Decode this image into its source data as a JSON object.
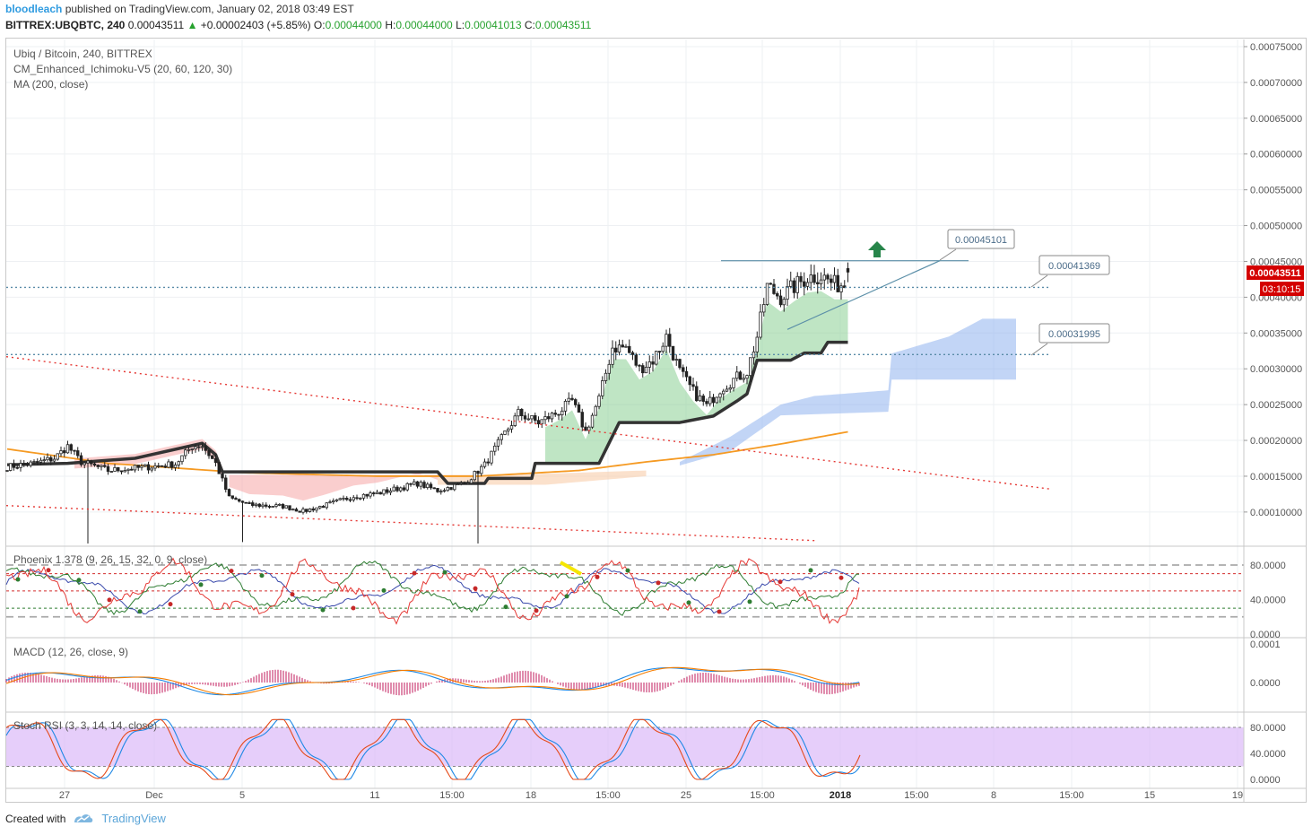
{
  "header": {
    "user": "bloodleach",
    "published": "published on TradingView.com, January 02, 2018 03:49 EST",
    "symbol": "BITTREX:UBQBTC, 240",
    "last": "0.00043511",
    "change_arrow": "▲",
    "change": "+0.00002403 (+5.85%)",
    "o_label": "O:",
    "o": "0.00044000",
    "h_label": "H:",
    "h": "0.00044000",
    "l_label": "L:",
    "l": "0.00041013",
    "c_label": "C:",
    "c": "0.00043511"
  },
  "legend": {
    "title": "Ubiq / Bitcoin, 240, BITTREX",
    "ichimoku": "CM_Enhanced_Ichimoku-V5 (20, 60, 120, 30)",
    "ma": "MA (200, close)",
    "phoenix": "Phoenix 1.378 (9, 26, 15, 32, 0, 9, close)",
    "macd": "MACD (12, 26, close, 9)",
    "stoch": "Stoch RSI (3, 3, 14, 14, close)"
  },
  "price_badge": {
    "value": "0.00043511",
    "time": "03:10:15",
    "color": "#d40000"
  },
  "callouts": [
    "0.00045101",
    "0.00041369",
    "0.00031995"
  ],
  "footer": {
    "created_with": "Created with",
    "brand": "TradingView",
    "icon": "tradingview-logo-icon"
  },
  "chart_data": {
    "type": "candlestick",
    "colors": {
      "up": "#2e8b3a",
      "down": "#c62828",
      "wick": "#222222",
      "ma": "#f59a23",
      "kijun": "#333333",
      "cloud_bull": "#8bcf94",
      "cloud_bear": "#f6a5a5",
      "cloud_future": "#8fb2ee"
    },
    "x_ticks": [
      "27",
      "Dec",
      "5",
      "11",
      "15:00",
      "18",
      "15:00",
      "25",
      "15:00",
      "2018",
      "15:00",
      "8",
      "15:00",
      "15",
      "19"
    ],
    "y_ticks": [
      0.00075,
      0.0007,
      0.00065,
      0.0006,
      0.00055,
      0.0005,
      0.00045,
      0.0004,
      0.00035,
      0.0003,
      0.00025,
      0.0002,
      0.00015,
      0.0001
    ],
    "y_tick_labels": [
      "0.00075000",
      "0.00070000",
      "0.00065000",
      "0.00060000",
      "0.00055000",
      "0.00050000",
      "0.00045000",
      "0.00040000",
      "0.00035000",
      "0.00030000",
      "0.00025000",
      "0.00020000",
      "0.00015000",
      "0.00010000"
    ],
    "ylim": [
      5.6e-05,
      0.00076
    ],
    "close_anchors": [
      [
        0,
        0.000163
      ],
      [
        8,
        0.000168
      ],
      [
        14,
        0.000175
      ],
      [
        18,
        0.000192
      ],
      [
        22,
        0.00017
      ],
      [
        30,
        0.000158
      ],
      [
        40,
        0.000162
      ],
      [
        50,
        0.000167
      ],
      [
        55,
        0.000192
      ],
      [
        58,
        0.000193
      ],
      [
        62,
        0.000168
      ],
      [
        66,
        0.00012
      ],
      [
        72,
        0.00011
      ],
      [
        82,
        0.000108
      ],
      [
        88,
        0.000101
      ],
      [
        95,
        0.00011
      ],
      [
        103,
        0.000122
      ],
      [
        110,
        0.000126
      ],
      [
        118,
        0.000135
      ],
      [
        122,
        0.00014
      ],
      [
        128,
        0.00013
      ],
      [
        136,
        0.00014
      ],
      [
        142,
        0.000166
      ],
      [
        148,
        0.00021
      ],
      [
        152,
        0.000238
      ],
      [
        158,
        0.000225
      ],
      [
        164,
        0.00024
      ],
      [
        168,
        0.000255
      ],
      [
        172,
        0.000212
      ],
      [
        176,
        0.000258
      ],
      [
        180,
        0.00033
      ],
      [
        184,
        0.00033
      ],
      [
        188,
        0.0003
      ],
      [
        192,
        0.000312
      ],
      [
        196,
        0.000345
      ],
      [
        200,
        0.000296
      ],
      [
        204,
        0.000268
      ],
      [
        208,
        0.000248
      ],
      [
        212,
        0.000272
      ],
      [
        216,
        0.000285
      ],
      [
        220,
        0.000296
      ],
      [
        223,
        0.000345
      ],
      [
        226,
        0.000415
      ],
      [
        230,
        0.0004
      ],
      [
        234,
        0.000415
      ],
      [
        238,
        0.000428
      ],
      [
        242,
        0.00043
      ],
      [
        246,
        0.000418
      ],
      [
        250,
        0.000418
      ]
    ],
    "last_candle": {
      "o": 0.00044,
      "h": 0.00044,
      "l": 0.00041013,
      "c": 0.00043511
    },
    "ma200": [
      [
        0,
        0.000188
      ],
      [
        30,
        0.000168
      ],
      [
        70,
        0.000155
      ],
      [
        110,
        0.00015
      ],
      [
        140,
        0.00015
      ],
      [
        170,
        0.000158
      ],
      [
        190,
        0.00017
      ],
      [
        210,
        0.00018
      ],
      [
        230,
        0.000195
      ],
      [
        250,
        0.000212
      ]
    ],
    "kijun": [
      [
        0,
        0.000166
      ],
      [
        18,
        0.000168
      ],
      [
        38,
        0.000175
      ],
      [
        58,
        0.000196
      ],
      [
        62,
        0.00018
      ],
      [
        64,
        0.000156
      ],
      [
        128,
        0.000156
      ],
      [
        131,
        0.00014
      ],
      [
        142,
        0.00014
      ],
      [
        143,
        0.000147
      ],
      [
        156,
        0.000147
      ],
      [
        157,
        0.000168
      ],
      [
        176,
        0.000168
      ],
      [
        182,
        0.000225
      ],
      [
        200,
        0.000225
      ],
      [
        210,
        0.000234
      ],
      [
        217,
        0.000255
      ],
      [
        220,
        0.000265
      ],
      [
        223,
        0.000312
      ],
      [
        233,
        0.000312
      ],
      [
        237,
        0.000322
      ],
      [
        242,
        0.000322
      ],
      [
        244,
        0.000337
      ],
      [
        250,
        0.000337
      ]
    ],
    "horizontal_levels": [
      0.00041369,
      0.00031995
    ],
    "resistance_level": 0.00045101,
    "triangle": {
      "top": 0.00045101,
      "start_low": 0.000355
    },
    "trendlines": "two descending dotted red lines",
    "phoenix": {
      "levels": [
        80,
        70,
        50,
        30,
        20
      ],
      "y_ticks": [
        "80.0000",
        "40.0000",
        "0.0000"
      ]
    },
    "macd": {
      "y_ticks": [
        "0.0001",
        "0.0000"
      ]
    },
    "stoch_rsi": {
      "band": [
        20,
        80
      ],
      "y_ticks": [
        "80.0000",
        "40.0000",
        "0.0000"
      ]
    }
  }
}
